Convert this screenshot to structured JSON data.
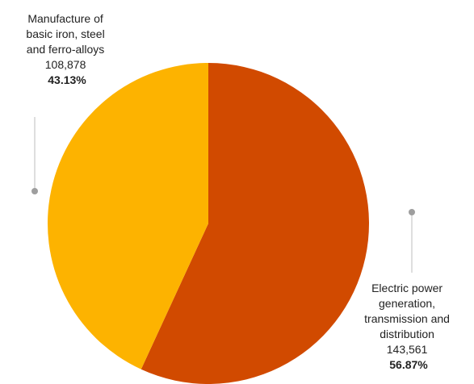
{
  "chart_data": {
    "type": "pie",
    "title": "",
    "legend": "none",
    "slices": [
      {
        "label_lines": [
          "Electric power",
          "generation,",
          "transmission and",
          "distribution"
        ],
        "value": 143561,
        "value_text": "143,561",
        "percent_text": "56.87%",
        "color": "#d14a00"
      },
      {
        "label_lines": [
          "Manufacture of",
          "basic iron, steel",
          "and ferro-alloys"
        ],
        "value": 108878,
        "value_text": "108,878",
        "percent_text": "43.13%",
        "color": "#fdb300"
      }
    ]
  }
}
